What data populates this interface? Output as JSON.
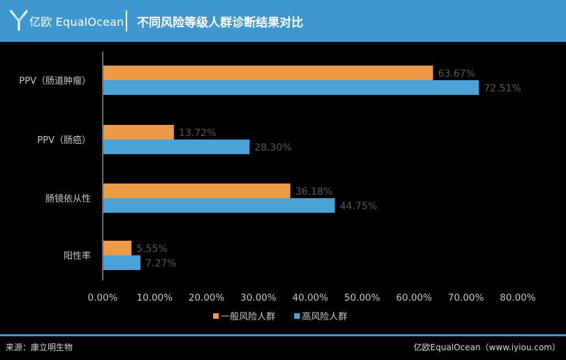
{
  "header": {
    "logo_text": "亿欧 EqualOcean",
    "title": "不同风险等级人群诊断结果对比"
  },
  "chart_data": {
    "type": "bar",
    "orientation": "horizontal",
    "title": "不同风险等级人群诊断结果对比",
    "categories": [
      "PPV（肠道肿瘤）",
      "PPV（肠癌）",
      "肠镜依从性",
      "阳性率"
    ],
    "series": [
      {
        "name": "一般风险人群",
        "color": "#ec9a45",
        "values": [
          63.67,
          13.72,
          36.18,
          5.55
        ]
      },
      {
        "name": "高风险人群",
        "color": "#4ba2d6",
        "values": [
          72.51,
          28.3,
          44.75,
          7.27
        ]
      }
    ],
    "data_labels": [
      [
        "63.67%",
        "13.72%",
        "36.18%",
        "5.55%"
      ],
      [
        "72.51%",
        "28.30%",
        "44.75%",
        "7.27%"
      ]
    ],
    "xlim": [
      0,
      80
    ],
    "x_ticks": [
      "0.00%",
      "10.00%",
      "20.00%",
      "30.00%",
      "40.00%",
      "50.00%",
      "60.00%",
      "70.00%",
      "80.00%"
    ],
    "xlabel": "",
    "ylabel": "",
    "grid": false,
    "legend_position": "bottom"
  },
  "footer": {
    "source": "来源：康立明生物",
    "credit": "亿欧EqualOcean（www.iyiou.com）"
  },
  "colors": {
    "brand_blue": "#3f97cf",
    "orange": "#ec9a45",
    "blue": "#4ba2d6"
  }
}
